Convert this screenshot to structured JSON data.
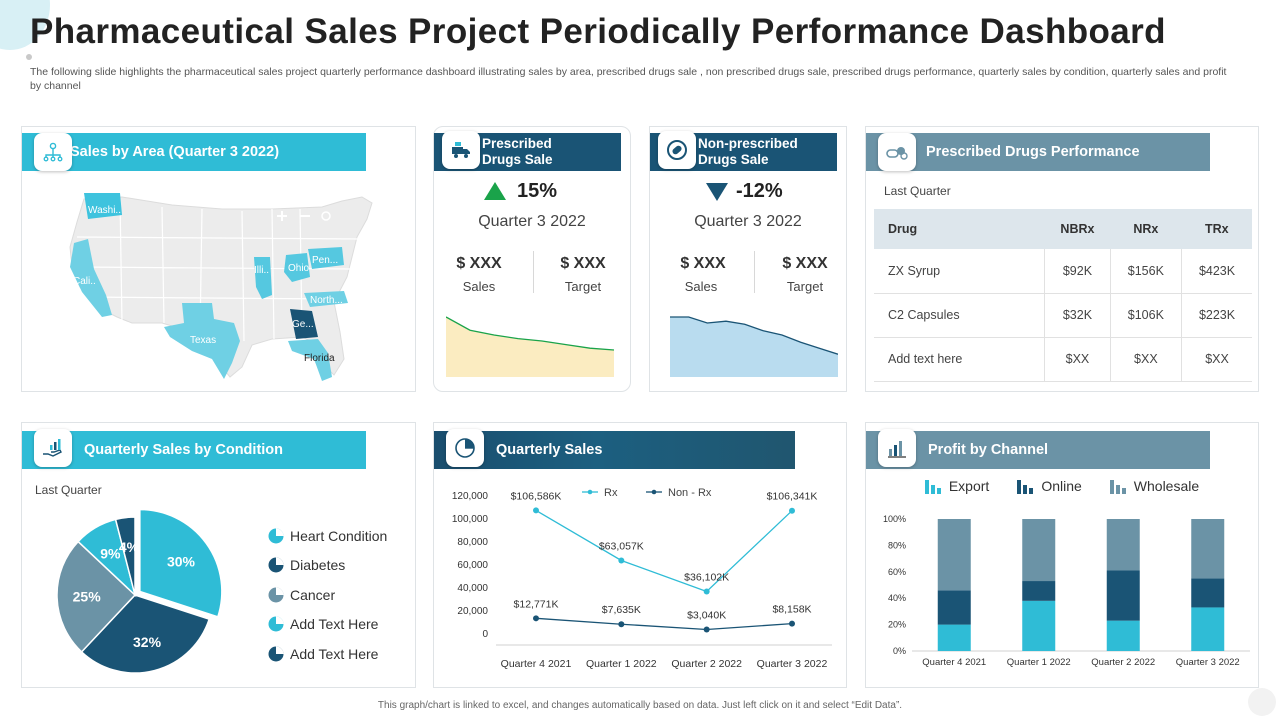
{
  "title": "Pharmaceutical Sales Project Periodically Performance Dashboard",
  "subtitle": "The following slide highlights the pharmaceutical sales project quarterly performance dashboard illustrating sales by area, prescribed drugs sale , non prescribed drugs sale, prescribed drugs performance, quarterly sales by condition, quarterly sales and profit by channel",
  "footer": "This graph/chart is linked to excel, and changes automatically based on data. Just left click on it and select “Edit Data”.",
  "colors": {
    "cyan": "#2fbcd6",
    "navy": "#1a5475",
    "slate": "#6b93a6",
    "up": "#1aa34a",
    "down": "#1a5475"
  },
  "sales_by_area": {
    "header": "Sales by Area (Quarter 3 2022)",
    "icon": "people-network-icon",
    "states": [
      "Washi..",
      "Cali..",
      "Texas",
      "Illi..",
      "Ohio",
      "Pen...",
      "North...",
      "Ge...",
      "Florida"
    ]
  },
  "prescribed": {
    "header_line1": "Prescribed",
    "header_line2": "Drugs Sale",
    "icon": "delivery-truck-icon",
    "change": "15%",
    "direction": "up",
    "quarter": "Quarter  3 2022",
    "sales_value": "$ XXX",
    "sales_label": "Sales",
    "target_value": "$ XXX",
    "target_label": "Target"
  },
  "non_prescribed": {
    "header_line1": "Non-prescribed",
    "header_line2": "Drugs Sale",
    "icon": "pill-icon",
    "change": "-12%",
    "direction": "down",
    "quarter": "Quarter  3 2022",
    "sales_value": "$ XXX",
    "sales_label": "Sales",
    "target_value": "$ XXX",
    "target_label": "Target"
  },
  "drugs_performance": {
    "header": "Prescribed Drugs Performance",
    "icon": "capsules-icon",
    "period": "Last Quarter",
    "columns": [
      "Drug",
      "NBRx",
      "NRx",
      "TRx"
    ],
    "rows": [
      [
        "ZX Syrup",
        "$92K",
        "$156K",
        "$423K"
      ],
      [
        "C2 Capsules",
        "$32K",
        "$106K",
        "$223K"
      ],
      [
        "Add text here",
        "$XX",
        "$XX",
        "$XX"
      ]
    ]
  },
  "condition": {
    "header": "Quarterly Sales by Condition",
    "icon": "hand-chart-icon",
    "period": "Last Quarter"
  },
  "quarterly_sales": {
    "header": "Quarterly Sales",
    "icon": "pie-chart-icon"
  },
  "profit_channel": {
    "header": "Profit by Channel",
    "icon": "bar-chart-icon"
  },
  "chart_data": [
    {
      "type": "area",
      "name": "prescribed-trend",
      "values": [
        100,
        78,
        70,
        64,
        60,
        54,
        48,
        45
      ],
      "ylim": [
        0,
        110
      ],
      "color": "#1aa34a",
      "fill": "#fbecc1"
    },
    {
      "type": "area",
      "name": "non-prescribed-trend",
      "values": [
        100,
        100,
        90,
        93,
        88,
        77,
        70,
        58,
        48,
        38
      ],
      "ylim": [
        0,
        110
      ],
      "color": "#1a5475",
      "fill": "#b9dcef"
    },
    {
      "type": "pie",
      "name": "sales-by-condition",
      "labels": [
        "Heart Condition",
        "Diabetes",
        "Cancer",
        "Add Text Here",
        "Add Text Here"
      ],
      "values": [
        30,
        32,
        25,
        9,
        4
      ],
      "display": [
        "30%",
        "32%",
        "25%",
        "9%",
        "4%"
      ],
      "colors": [
        "#2fbcd6",
        "#1a5475",
        "#6b93a6",
        "#2fbcd6",
        "#1a5475"
      ]
    },
    {
      "type": "line",
      "name": "quarterly-sales",
      "categories": [
        "Quarter 4 2021",
        "Quarter 1 2022",
        "Quarter 2 2022",
        "Quarter 3 2022"
      ],
      "series": [
        {
          "name": "Rx",
          "values": [
            106586,
            63057,
            36102,
            106341
          ],
          "labels": [
            "$106,586K",
            "$63,057K",
            "$36,102K",
            "$106,341K"
          ],
          "color": "#2fbcd6"
        },
        {
          "name": "Non - Rx",
          "values": [
            12771,
            7635,
            3040,
            8158
          ],
          "labels": [
            "$12,771K",
            "$7,635K",
            "$3,040K",
            "$8,158K"
          ],
          "color": "#1a5475"
        }
      ],
      "ylim": [
        0,
        120000
      ],
      "yticks": [
        "0",
        "20,000",
        "40,000",
        "60,000",
        "80,000",
        "100,000",
        "120,000"
      ]
    },
    {
      "type": "bar",
      "name": "profit-by-channel",
      "stacked": true,
      "categories": [
        "Quarter 4 2021",
        "Quarter 1 2022",
        "Quarter 2 2022",
        "Quarter 3 2022"
      ],
      "series": [
        {
          "name": "Export",
          "values": [
            20,
            38,
            23,
            33
          ],
          "color": "#2fbcd6"
        },
        {
          "name": "Online",
          "values": [
            26,
            15,
            38,
            22
          ],
          "color": "#1a5475"
        },
        {
          "name": "Wholesale",
          "values": [
            54,
            47,
            39,
            45
          ],
          "color": "#6b93a6"
        }
      ],
      "ylim": [
        0,
        100
      ],
      "yticks": [
        "0%",
        "20%",
        "40%",
        "60%",
        "80%",
        "100%"
      ]
    }
  ]
}
